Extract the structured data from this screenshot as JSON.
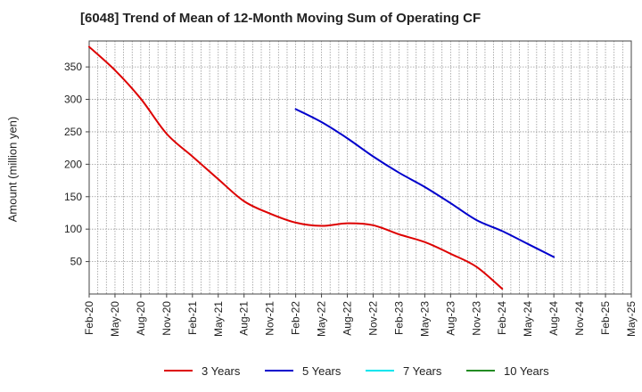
{
  "chart_data": {
    "type": "line",
    "title": "[6048]  Trend of Mean of 12-Month Moving Sum of Operating CF",
    "xlabel": "",
    "ylabel": "Amount (million yen)",
    "ylim": [
      0,
      390
    ],
    "yticks": [
      50,
      100,
      150,
      200,
      250,
      300,
      350
    ],
    "categories": [
      "Feb-20",
      "May-20",
      "Aug-20",
      "Nov-20",
      "Feb-21",
      "May-21",
      "Aug-21",
      "Nov-21",
      "Feb-22",
      "May-22",
      "Aug-22",
      "Nov-22",
      "Feb-23",
      "May-23",
      "Aug-23",
      "Nov-23",
      "Feb-24",
      "May-24",
      "Aug-24",
      "Nov-24",
      "Feb-25",
      "May-25"
    ],
    "grid": true,
    "legend_position": "bottom",
    "series": [
      {
        "name": "3 Years",
        "color": "#dd0000",
        "values": [
          381,
          345,
          301,
          247,
          212,
          177,
          143,
          124,
          110,
          105,
          109,
          106,
          92,
          80,
          62,
          42,
          8,
          null,
          null,
          null,
          null,
          null
        ]
      },
      {
        "name": "5 Years",
        "color": "#0000cc",
        "values": [
          null,
          null,
          null,
          null,
          null,
          null,
          null,
          null,
          285,
          265,
          240,
          212,
          187,
          165,
          140,
          114,
          97,
          77,
          57,
          null,
          null,
          null
        ]
      },
      {
        "name": "7 Years",
        "color": "#00e5ee",
        "values": [
          null,
          null,
          null,
          null,
          null,
          null,
          null,
          null,
          null,
          null,
          null,
          null,
          null,
          null,
          null,
          null,
          null,
          null,
          null,
          null,
          null,
          null
        ]
      },
      {
        "name": "10 Years",
        "color": "#228b22",
        "values": [
          null,
          null,
          null,
          null,
          null,
          null,
          null,
          null,
          null,
          null,
          null,
          null,
          null,
          null,
          null,
          null,
          null,
          null,
          null,
          null,
          null,
          null
        ]
      }
    ]
  }
}
